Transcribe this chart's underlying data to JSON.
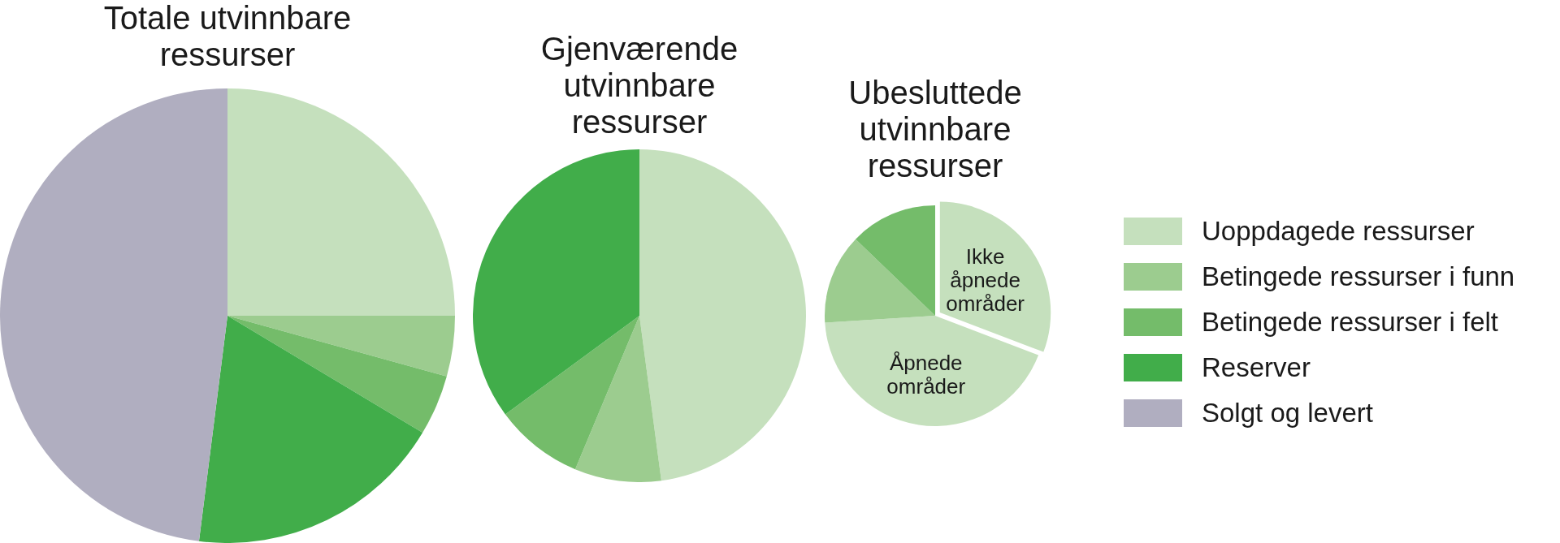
{
  "chart_data": [
    {
      "type": "pie",
      "title": "Totale utvinnbare ressurser",
      "categories": [
        "Uoppdagede ressurser",
        "Betingede ressurser i funn",
        "Betingede ressurser i felt",
        "Reserver",
        "Solgt og levert"
      ],
      "values": [
        25,
        4.3,
        4.3,
        18.4,
        48
      ],
      "colors": [
        "#c5e0bd",
        "#9ccc8f",
        "#74bc6a",
        "#41ad4a",
        "#b0aec0"
      ],
      "legend": "right"
    },
    {
      "type": "pie",
      "title": "Gjenværende utvinnbare ressurser",
      "categories": [
        null,
        null,
        null,
        null
      ],
      "values": [
        47.9,
        8.4,
        8.6,
        35.1
      ],
      "colors": [
        "#c5e0bd",
        "#9ccc8f",
        "#74bc6a",
        "#41ad4a"
      ]
    },
    {
      "type": "pie",
      "title": "Ubesluttede utvinnbare ressurser",
      "categories": [
        "Ikke åpnede områder",
        "Åpnede områder",
        null,
        null
      ],
      "values": [
        30.8,
        43.2,
        13.2,
        12.8
      ],
      "colors": [
        "#c5e0bd",
        "#c5e0bd",
        "#9ccc8f",
        "#74bc6a"
      ]
    }
  ]
}
